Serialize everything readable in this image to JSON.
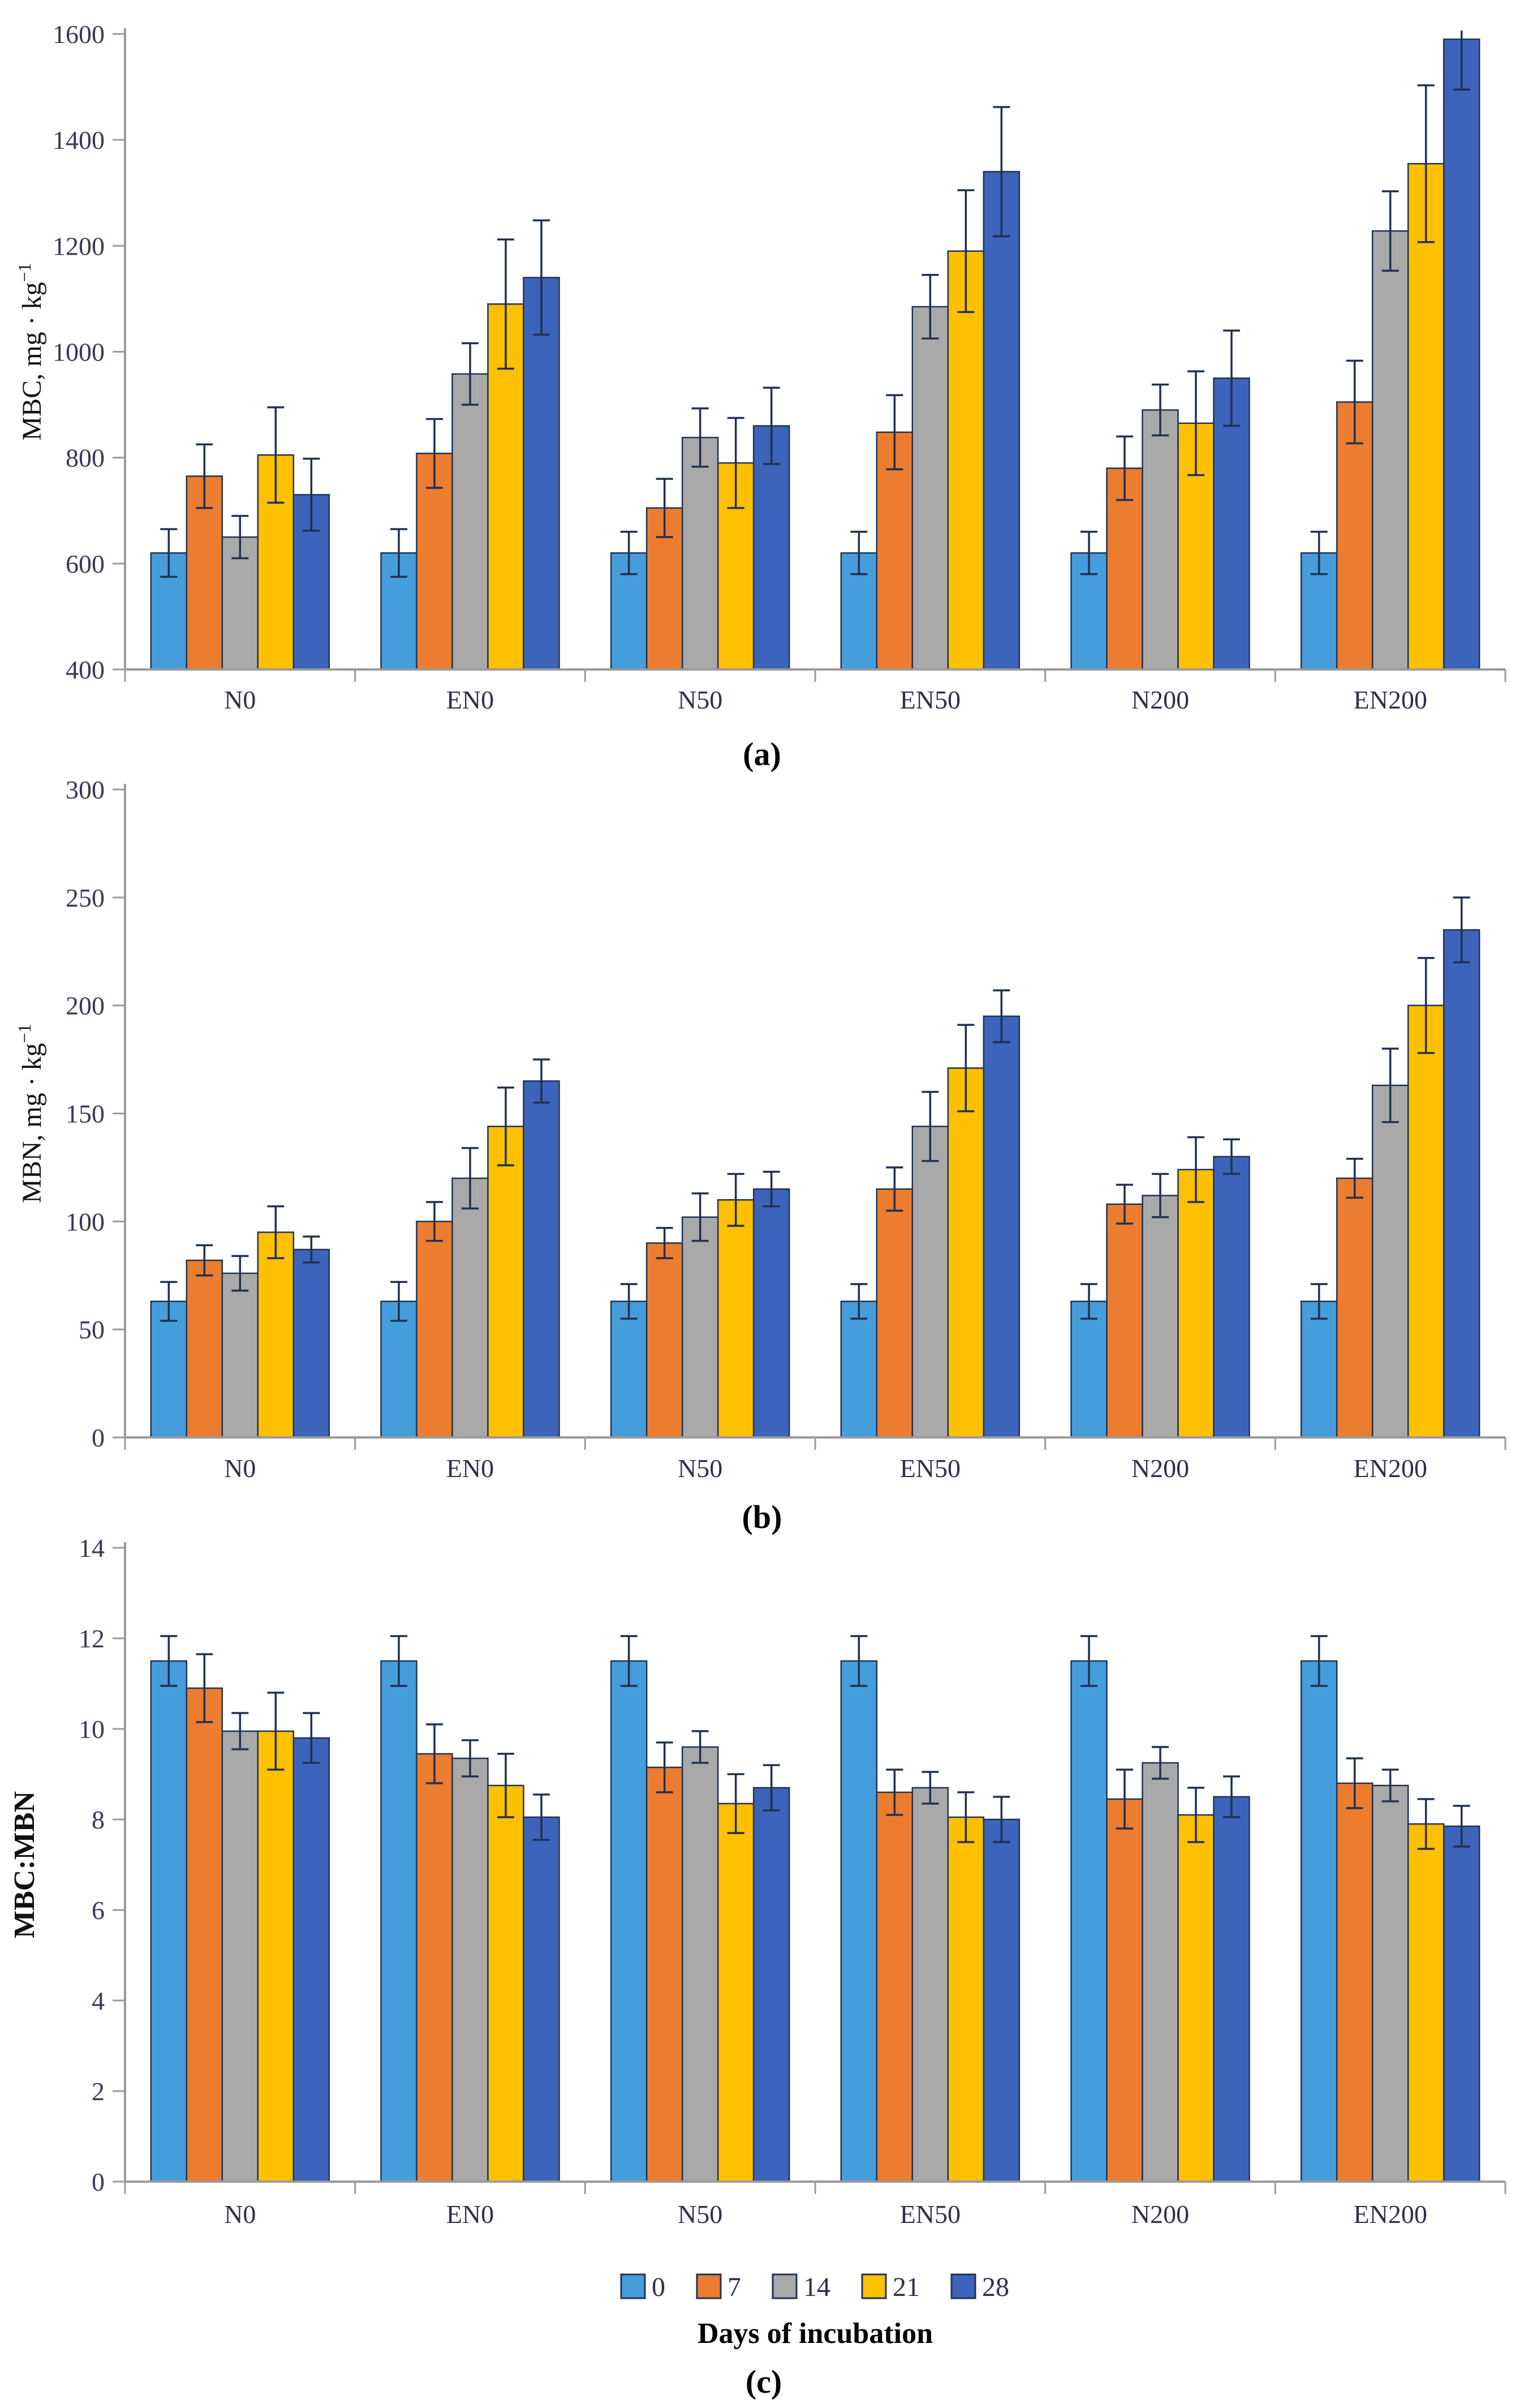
{
  "page": {
    "background": "#ffffff"
  },
  "captions": {
    "a": "(a)",
    "b": "(b)",
    "c": "(c)"
  },
  "legend": {
    "items": [
      {
        "label": "0",
        "color": "#469DDB"
      },
      {
        "label": "7",
        "color": "#EC7C30"
      },
      {
        "label": "14",
        "color": "#A9A9A9"
      },
      {
        "label": "21",
        "color": "#FFC000"
      },
      {
        "label": "28",
        "color": "#3D64BB"
      }
    ],
    "xaxis_title": "Days of incubation"
  },
  "styles": {
    "bar_stroke": "#1F3352",
    "error_color": "#203050",
    "axis_color": "#9B9B9B",
    "tick_label_color": "#3E3654",
    "category_label_color": "#342D49"
  },
  "chart_data": [
    {
      "type": "bar",
      "panel": "a",
      "ylabel": "MBC, mg · kg",
      "ylabel_sup": "−1",
      "ylim": [
        400,
        1600
      ],
      "ytick_step": 200,
      "grid": false,
      "legend_position": "below-figure",
      "categories": [
        "N0",
        "EN0",
        "N50",
        "EN50",
        "N200",
        "EN200"
      ],
      "series": [
        {
          "name": "0",
          "values": [
            620,
            620,
            620,
            620,
            620,
            620
          ],
          "errors": [
            45,
            45,
            40,
            40,
            40,
            40
          ]
        },
        {
          "name": "7",
          "values": [
            765,
            808,
            705,
            848,
            780,
            905
          ],
          "errors": [
            60,
            65,
            55,
            70,
            60,
            78
          ]
        },
        {
          "name": "14",
          "values": [
            650,
            958,
            838,
            1085,
            890,
            1228
          ],
          "errors": [
            40,
            58,
            55,
            60,
            48,
            75
          ]
        },
        {
          "name": "21",
          "values": [
            805,
            1090,
            790,
            1190,
            865,
            1355
          ],
          "errors": [
            90,
            122,
            85,
            115,
            98,
            148
          ]
        },
        {
          "name": "28",
          "values": [
            730,
            1140,
            860,
            1340,
            950,
            1590
          ],
          "errors": [
            68,
            108,
            72,
            122,
            90,
            95
          ]
        }
      ]
    },
    {
      "type": "bar",
      "panel": "b",
      "ylabel": "MBN, mg · kg",
      "ylabel_sup": "−1",
      "ylim": [
        0,
        300
      ],
      "ytick_step": 50,
      "grid": false,
      "legend_position": "below-figure",
      "categories": [
        "N0",
        "EN0",
        "N50",
        "EN50",
        "N200",
        "EN200"
      ],
      "series": [
        {
          "name": "0",
          "values": [
            63,
            63,
            63,
            63,
            63,
            63
          ],
          "errors": [
            9,
            9,
            8,
            8,
            8,
            8
          ]
        },
        {
          "name": "7",
          "values": [
            82,
            100,
            90,
            115,
            108,
            120
          ],
          "errors": [
            7,
            9,
            7,
            10,
            9,
            9
          ]
        },
        {
          "name": "14",
          "values": [
            76,
            120,
            102,
            144,
            112,
            163
          ],
          "errors": [
            8,
            14,
            11,
            16,
            10,
            17
          ]
        },
        {
          "name": "21",
          "values": [
            95,
            144,
            110,
            171,
            124,
            200
          ],
          "errors": [
            12,
            18,
            12,
            20,
            15,
            22
          ]
        },
        {
          "name": "28",
          "values": [
            87,
            165,
            115,
            195,
            130,
            235
          ],
          "errors": [
            6,
            10,
            8,
            12,
            8,
            15
          ]
        }
      ]
    },
    {
      "type": "bar",
      "panel": "c",
      "ylabel": "MBC:MBN",
      "ylabel_sup": "",
      "ylim": [
        0,
        14
      ],
      "ytick_step": 2,
      "grid": false,
      "legend_position": "below-figure",
      "categories": [
        "N0",
        "EN0",
        "N50",
        "EN50",
        "N200",
        "EN200"
      ],
      "series": [
        {
          "name": "0",
          "values": [
            11.5,
            11.5,
            11.5,
            11.5,
            11.5,
            11.5
          ],
          "errors": [
            0.55,
            0.55,
            0.55,
            0.55,
            0.55,
            0.55
          ]
        },
        {
          "name": "7",
          "values": [
            10.9,
            9.45,
            9.15,
            8.6,
            8.45,
            8.8
          ],
          "errors": [
            0.75,
            0.65,
            0.55,
            0.5,
            0.65,
            0.55
          ]
        },
        {
          "name": "14",
          "values": [
            9.95,
            9.35,
            9.6,
            8.7,
            9.25,
            8.75
          ],
          "errors": [
            0.4,
            0.4,
            0.35,
            0.35,
            0.35,
            0.35
          ]
        },
        {
          "name": "21",
          "values": [
            9.95,
            8.75,
            8.35,
            8.05,
            8.1,
            7.9
          ],
          "errors": [
            0.85,
            0.7,
            0.65,
            0.55,
            0.6,
            0.55
          ]
        },
        {
          "name": "28",
          "values": [
            9.8,
            8.05,
            8.7,
            8.0,
            8.5,
            7.85
          ],
          "errors": [
            0.55,
            0.5,
            0.5,
            0.5,
            0.45,
            0.45
          ]
        }
      ]
    }
  ]
}
